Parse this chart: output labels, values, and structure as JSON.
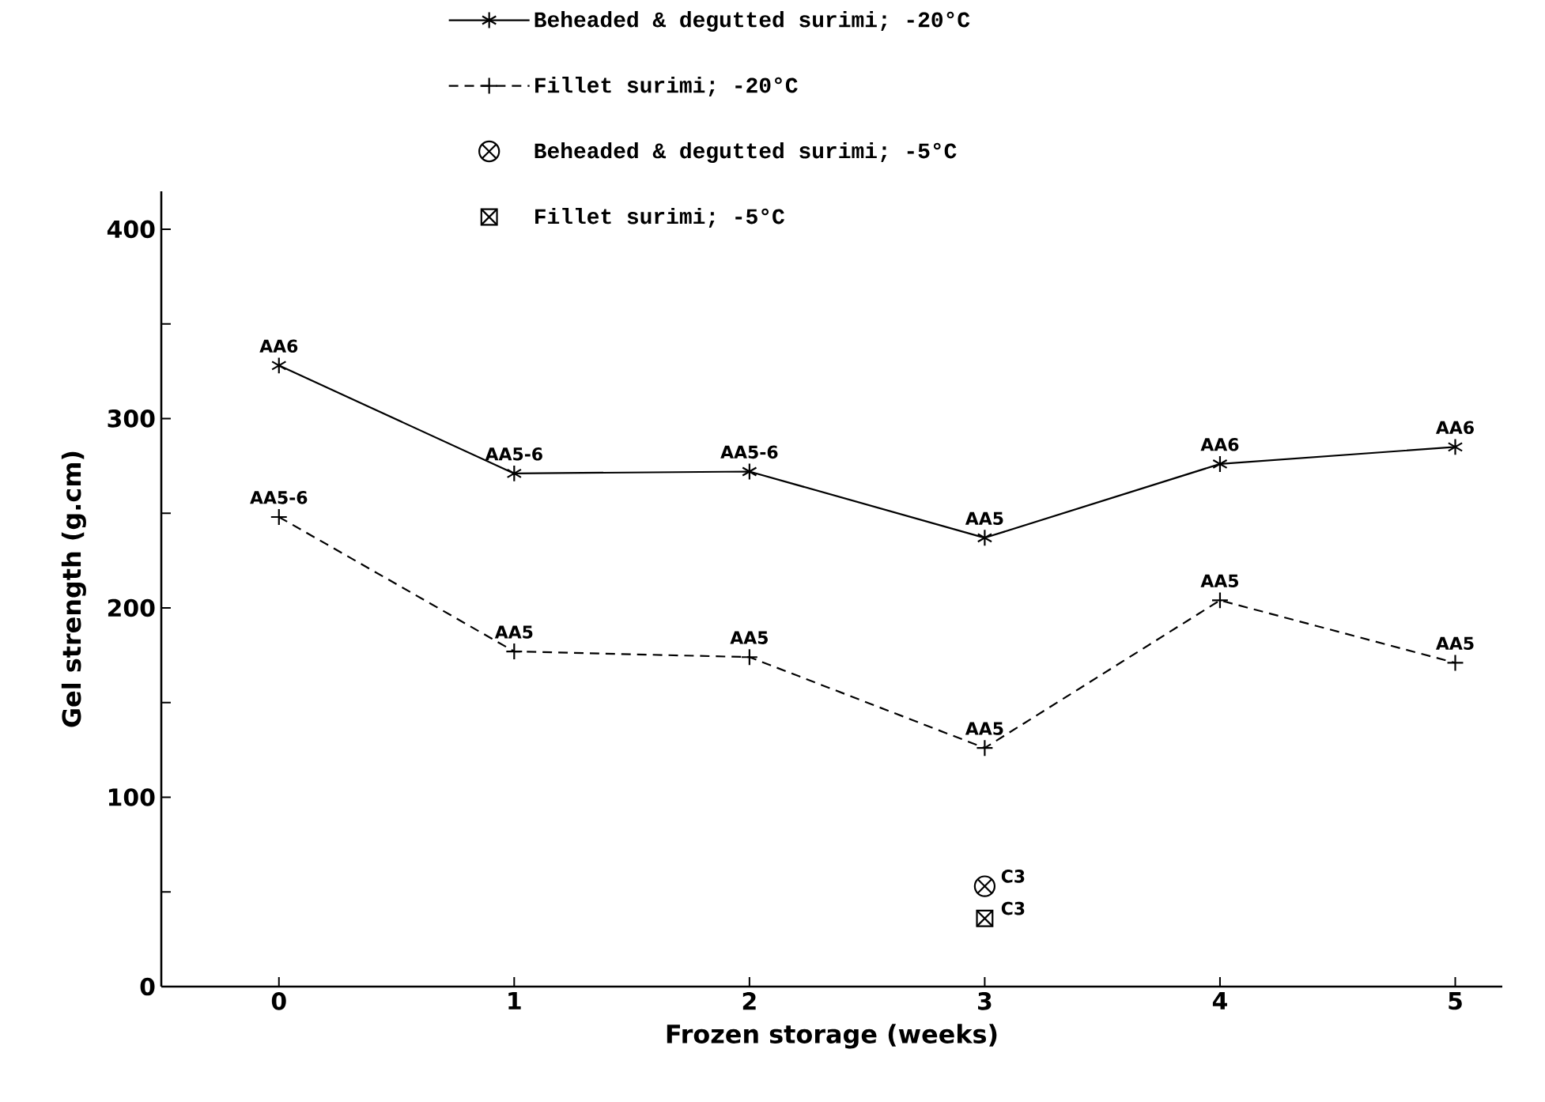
{
  "chart_data": {
    "type": "line",
    "xlabel": "Frozen storage (weeks)",
    "ylabel": "Gel strength (g.cm)",
    "x": [
      0,
      1,
      2,
      3,
      4,
      5
    ],
    "xlim": [
      -0.5,
      5.2
    ],
    "ylim": [
      0,
      420
    ],
    "xticks": [
      0,
      1,
      2,
      3,
      4,
      5
    ],
    "yticks": [
      0,
      {
        "value": 50,
        "label": null
      },
      100,
      {
        "value": 150,
        "label": null
      },
      200,
      {
        "value": 250,
        "label": null
      },
      300,
      {
        "value": 350,
        "label": null
      },
      400
    ],
    "legend": "top",
    "grid": false,
    "series": [
      {
        "name": "Beheaded & degutted surimi; -20°C",
        "color": "#000000",
        "marker": "cross",
        "line_style": "solid",
        "values": [
          328,
          271,
          272,
          237,
          276,
          285
        ],
        "value_labels": [
          "AA6",
          "AA5-6",
          "AA5-6",
          "AA5",
          "AA6",
          "AA6"
        ]
      },
      {
        "name": "Fillet surimi; -20°C",
        "color": "#000000",
        "marker": "cross",
        "line_style": "dashed",
        "values": [
          248,
          177,
          174,
          126,
          204,
          171
        ],
        "value_labels": [
          "AA5-6",
          "AA5",
          "AA5",
          "AA5",
          "AA5",
          "AA5"
        ]
      },
      {
        "name": "Beheaded & degutted surimi; -5°C",
        "type": "scatter",
        "color": "#000000",
        "marker": "circle",
        "x": [
          3
        ],
        "values": [
          53
        ],
        "value_labels": [
          "C3"
        ]
      },
      {
        "name": "Fillet surimi; -5°C",
        "type": "scatter",
        "color": "#000000",
        "marker": "square",
        "x": [
          3
        ],
        "values": [
          36
        ],
        "value_labels": [
          "C3"
        ]
      }
    ]
  }
}
